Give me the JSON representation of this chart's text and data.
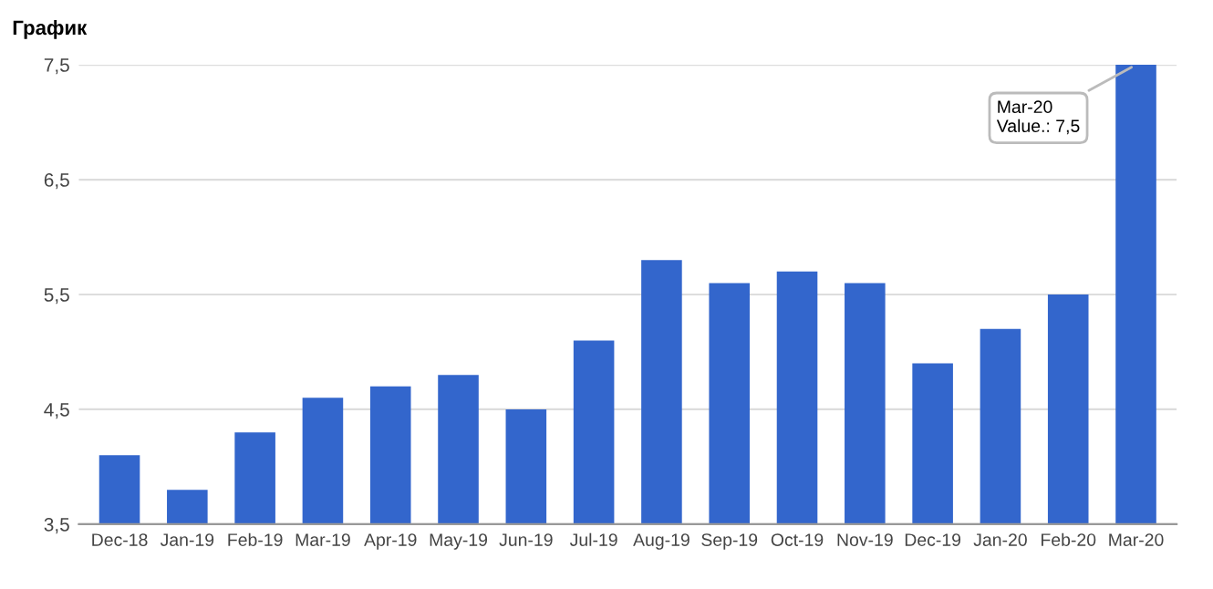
{
  "chart_data": {
    "type": "bar",
    "title": "График",
    "categories": [
      "Dec-18",
      "Jan-19",
      "Feb-19",
      "Mar-19",
      "Apr-19",
      "May-19",
      "Jun-19",
      "Jul-19",
      "Aug-19",
      "Sep-19",
      "Oct-19",
      "Nov-19",
      "Dec-19",
      "Jan-20",
      "Feb-20",
      "Mar-20"
    ],
    "values": [
      4.1,
      3.8,
      4.3,
      4.6,
      4.7,
      4.8,
      4.5,
      5.1,
      5.8,
      5.6,
      5.7,
      5.6,
      4.9,
      5.2,
      5.5,
      7.5
    ],
    "color": "#3366cc",
    "ylim": [
      3.5,
      7.5
    ],
    "yticks": [
      {
        "value": 3.5,
        "label": "3,5"
      },
      {
        "value": 4.5,
        "label": "4,5"
      },
      {
        "value": 5.5,
        "label": "5,5"
      },
      {
        "value": 6.5,
        "label": "6,5"
      },
      {
        "value": 7.5,
        "label": "7,5"
      }
    ],
    "grid": "y",
    "annotations": [
      {
        "text": "Mar-20\nValue.: 7,5",
        "x": "Mar-20",
        "y": 7.5
      }
    ]
  }
}
